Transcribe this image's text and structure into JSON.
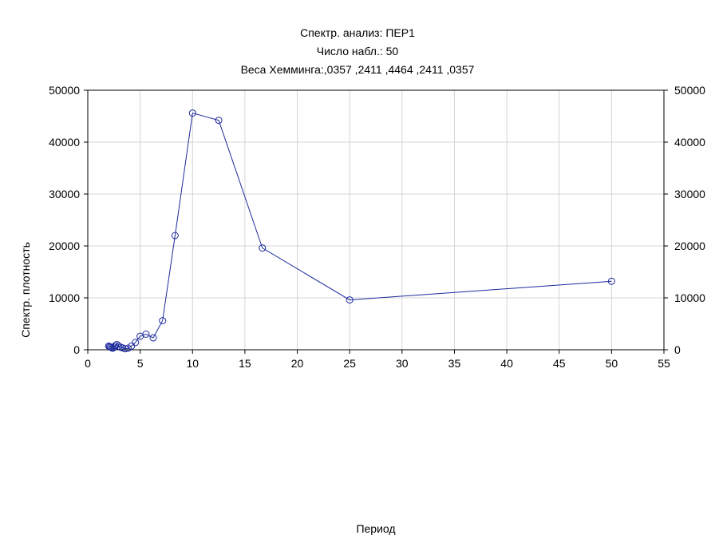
{
  "chart_data": {
    "type": "line",
    "title": "Спектр. анализ: ПЕР1",
    "subtitle_lines": [
      "Число набл.: 50",
      "Веса Хемминга:,0357 ,2411 ,4464 ,2411 ,0357"
    ],
    "xlabel": "Период",
    "ylabel": "Спектр. плотность",
    "xlim": [
      0,
      55
    ],
    "ylim": [
      0,
      50000
    ],
    "x_ticks": [
      0,
      5,
      10,
      15,
      20,
      25,
      30,
      35,
      40,
      45,
      50,
      55
    ],
    "y_ticks": [
      0,
      10000,
      20000,
      30000,
      40000,
      50000
    ],
    "grid": true,
    "right_axis": true,
    "series_color": "#1c2a9c",
    "series": [
      {
        "x": [
          50,
          25,
          16.67,
          12.5,
          10,
          8.33,
          7.14,
          6.25,
          5.56,
          5,
          4.55,
          4.17,
          3.85,
          3.57,
          3.33,
          3.13,
          2.94,
          2.78,
          2.63,
          2.5,
          2.38,
          2.27,
          2.17,
          2.08,
          2
        ],
        "y": [
          13200,
          9600,
          19600,
          44200,
          45600,
          22000,
          5600,
          2300,
          3000,
          2600,
          1400,
          700,
          300,
          200,
          350,
          500,
          700,
          1000,
          800,
          500,
          300,
          400,
          500,
          600,
          700
        ]
      }
    ]
  }
}
